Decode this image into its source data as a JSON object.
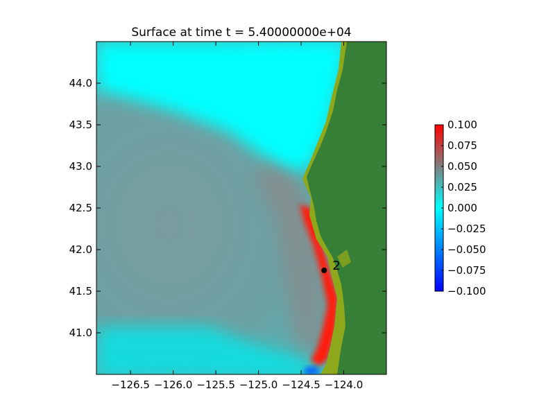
{
  "chart_data": {
    "type": "heatmap",
    "title": "Surface at time t = 5.40000000e+04",
    "xlabel": "",
    "ylabel": "",
    "xlim": [
      -126.9,
      -123.5
    ],
    "ylim": [
      40.5,
      44.5
    ],
    "x_ticks": [
      -126.5,
      -126.0,
      -125.5,
      -125.0,
      -124.5,
      -124.0
    ],
    "x_tick_labels": [
      "−126.5",
      "−126.0",
      "−125.5",
      "−125.0",
      "−124.5",
      "−124.0"
    ],
    "y_ticks": [
      41.0,
      41.5,
      42.0,
      42.5,
      43.0,
      43.5,
      44.0
    ],
    "y_tick_labels": [
      "41.0",
      "41.5",
      "42.0",
      "42.5",
      "43.0",
      "43.5",
      "44.0"
    ],
    "colorbar": {
      "range": [
        -0.1,
        0.1
      ],
      "ticks": [
        0.1,
        0.075,
        0.05,
        0.025,
        0.0,
        -0.025,
        -0.05,
        -0.075,
        -0.1
      ],
      "tick_labels": [
        "0.100",
        "0.075",
        "0.050",
        "0.025",
        "0.000",
        "−0.025",
        "−0.050",
        "−0.075",
        "−0.100"
      ],
      "colors": [
        "#0000ff",
        "#00ffff",
        "#808080",
        "#ff0000"
      ]
    },
    "land_color": "#367f37",
    "shore_color": "#8ea81c",
    "ocean_base_color": "#6e9da0",
    "gauges": [
      {
        "label": "2",
        "x": -124.23,
        "y": 41.75
      }
    ]
  }
}
